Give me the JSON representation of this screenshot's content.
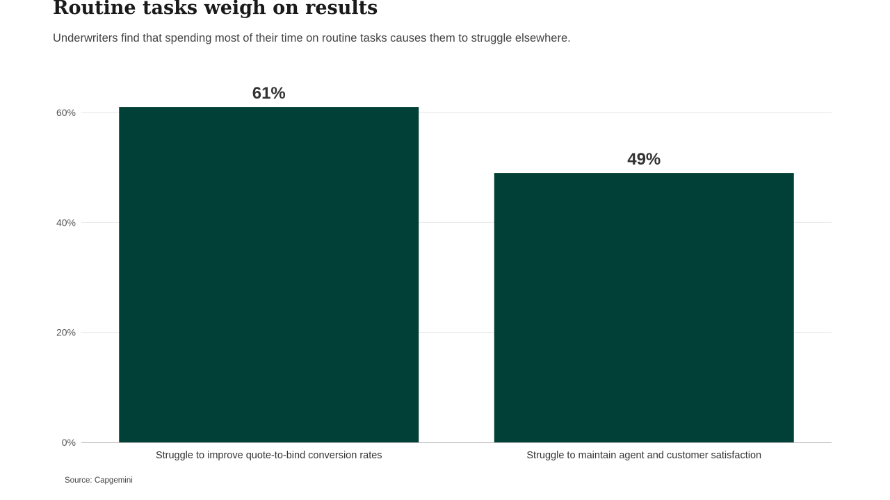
{
  "chart_data": {
    "type": "bar",
    "title": "Routine tasks weigh on results",
    "subtitle": "Underwriters find that spending most of their time on routine tasks causes them to struggle elsewhere.",
    "categories": [
      "Struggle to improve quote-to-bind conversion rates",
      "Struggle to maintain agent and customer satisfaction"
    ],
    "values": [
      61,
      49
    ],
    "data_labels": [
      "61%",
      "49%"
    ],
    "y_ticks": [
      0,
      20,
      40,
      60
    ],
    "y_tick_labels": [
      "0%",
      "20%",
      "40%",
      "60%"
    ],
    "ylim": [
      0,
      60
    ],
    "xlabel": "",
    "ylabel": "",
    "grid": true,
    "bar_color": "#014036",
    "gridline_color": "#e6e6e6",
    "axis_color": "#bbbbbb"
  },
  "source": "Source: Capgemini"
}
